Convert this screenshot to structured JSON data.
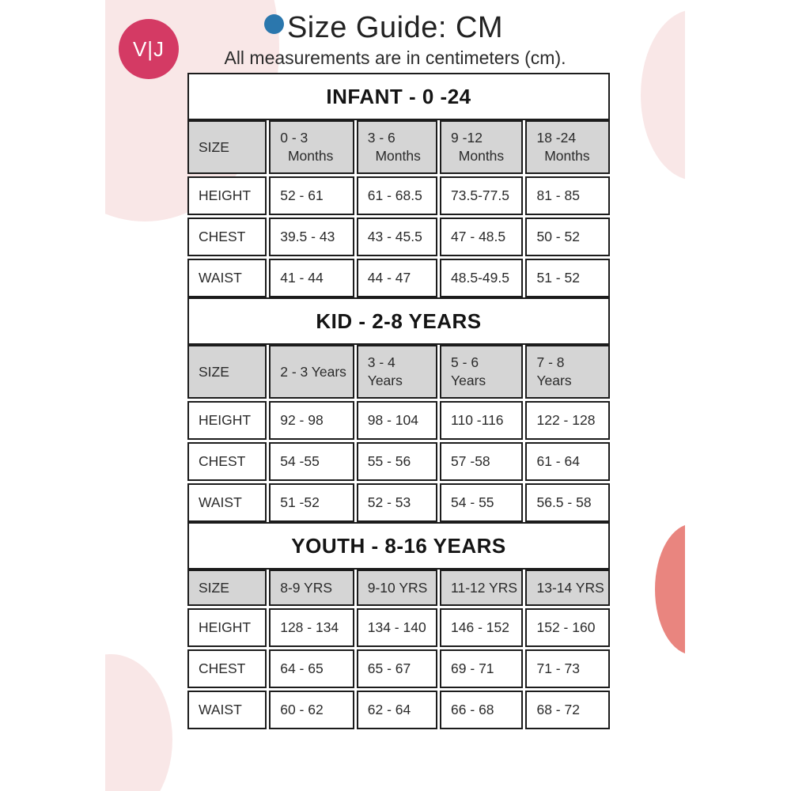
{
  "header": {
    "title": "Size Guide: CM",
    "subtitle": "All measurements are in centimeters (cm).",
    "logo_text": "V|J"
  },
  "colors": {
    "crimson": "#d43a64",
    "blue": "#2b77ad",
    "pink": "#f9e7e7",
    "coral": "#e9857f",
    "gray": "#d5d5d5",
    "bdr": "#1c1c1c",
    "txt": "#2b2b2b"
  },
  "tables": [
    {
      "title": "INFANT - 0 -24",
      "size_label": "SIZE",
      "columns": [
        "0 - 3\n  Months",
        "3 - 6\n  Months",
        "9 -12\n  Months",
        "18 -24\n  Months"
      ],
      "rows": [
        {
          "label": "HEIGHT",
          "values": [
            "52 - 61",
            "61 - 68.5",
            "73.5-77.5",
            "81 - 85"
          ]
        },
        {
          "label": "CHEST",
          "values": [
            "39.5 - 43",
            "43 - 45.5",
            "47 - 48.5",
            "50 - 52"
          ]
        },
        {
          "label": "WAIST",
          "values": [
            "41 - 44",
            "44 - 47",
            "48.5-49.5",
            "51 - 52"
          ]
        }
      ]
    },
    {
      "title": "KID - 2-8 YEARS",
      "size_label": "SIZE",
      "columns": [
        "2 - 3 Years",
        "3 - 4\nYears",
        "5 - 6\nYears",
        "7 - 8\nYears"
      ],
      "rows": [
        {
          "label": "HEIGHT",
          "values": [
            "92 - 98",
            "98 - 104",
            "110 -116",
            "122 - 128"
          ]
        },
        {
          "label": "CHEST",
          "values": [
            "54 -55",
            "55 - 56",
            "57 -58",
            "61 - 64"
          ]
        },
        {
          "label": "WAIST",
          "values": [
            "51 -52",
            "52 - 53",
            "54 - 55",
            "56.5 - 58"
          ]
        }
      ]
    },
    {
      "title": "YOUTH - 8-16 YEARS",
      "size_label": "SIZE",
      "columns": [
        "8-9 YRS",
        "9-10 YRS",
        "11-12 YRS",
        "13-14 YRS"
      ],
      "rows": [
        {
          "label": "HEIGHT",
          "values": [
            "128 - 134",
            "134 - 140",
            "146 - 152",
            "152 - 160"
          ]
        },
        {
          "label": "CHEST",
          "values": [
            "64 - 65",
            "65 - 67",
            "69 - 71",
            "71 - 73"
          ]
        },
        {
          "label": "WAIST",
          "values": [
            "60 - 62",
            "62 - 64",
            "66 - 68",
            "68 - 72"
          ]
        }
      ]
    }
  ]
}
